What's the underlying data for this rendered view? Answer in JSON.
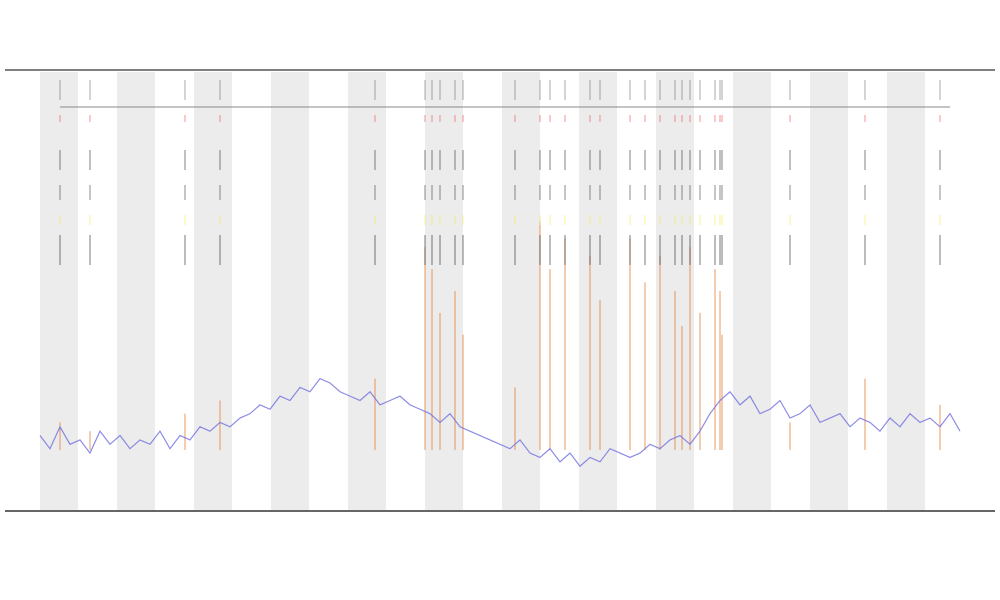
{
  "chart_data": {
    "type": "line",
    "xlim": [
      0,
      92
    ],
    "ylim": [
      0,
      100
    ],
    "series": [
      {
        "color": "#6f6fe0",
        "values": [
          17,
          14,
          19,
          15,
          16,
          13,
          18,
          15,
          17,
          14,
          16,
          15,
          18,
          14,
          17,
          16,
          19,
          18,
          20,
          19,
          21,
          22,
          24,
          23,
          26,
          25,
          28,
          27,
          30,
          29,
          27,
          26,
          25,
          27,
          24,
          25,
          26,
          24,
          23,
          22,
          20,
          22,
          19,
          18,
          17,
          16,
          15,
          14,
          16,
          13,
          12,
          14,
          11,
          13,
          10,
          12,
          11,
          14,
          13,
          12,
          13,
          15,
          14,
          16,
          17,
          15,
          18,
          22,
          25,
          27,
          24,
          26,
          22,
          23,
          25,
          21,
          22,
          24,
          20,
          21,
          22,
          19,
          21,
          20,
          18,
          21,
          19,
          22,
          20,
          21,
          19,
          22,
          18
        ]
      }
    ],
    "events": {
      "color": "#e07020",
      "x": [
        2,
        5,
        14.5,
        18,
        33.5,
        38.5,
        39.2,
        40,
        41.5,
        42.3,
        47.5,
        50,
        51,
        52.5,
        55,
        56,
        59,
        60.5,
        62,
        63.5,
        64.2,
        65,
        66,
        67.5,
        68,
        68.2,
        75,
        82.5,
        90
      ],
      "values": [
        20,
        18,
        22,
        25,
        30,
        60,
        55,
        45,
        50,
        40,
        28,
        66,
        55,
        62,
        58,
        48,
        62,
        52,
        58,
        50,
        42,
        60,
        45,
        55,
        50,
        40,
        20,
        30,
        24
      ]
    }
  }
}
